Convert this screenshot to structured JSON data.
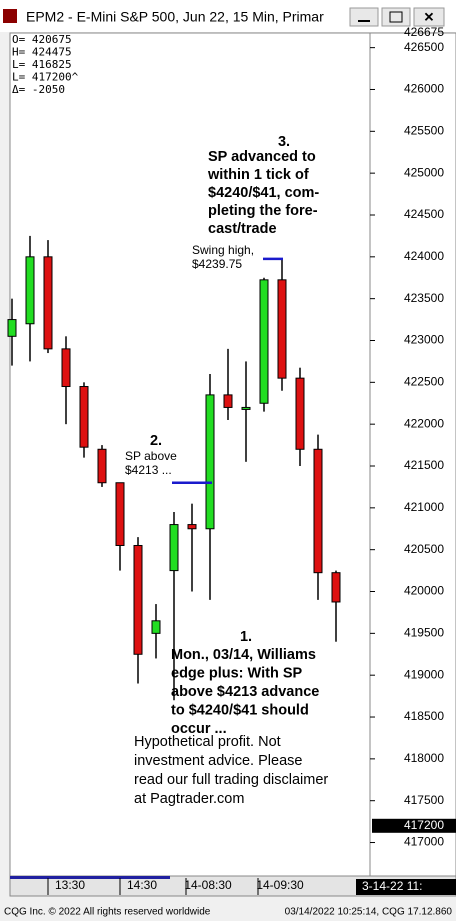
{
  "chart_data": {
    "type": "candlestick",
    "title": "EPM2 - E-Mini S&P 500, Jun 22, 15 Min, Primar",
    "info": [
      "O=  420675",
      "H=  424475",
      "L=  416825",
      "L=  417200^",
      "Δ=    -2050"
    ],
    "ylim": [
      416600,
      426675
    ],
    "yticks": [
      417000,
      417500,
      418000,
      418500,
      419000,
      419500,
      420000,
      420500,
      421000,
      421500,
      422000,
      422500,
      423000,
      423500,
      424000,
      424500,
      425000,
      425500,
      426000,
      426500
    ],
    "last": 417200,
    "up_color": "#22dd22",
    "down_color": "#dd1111",
    "level_color": "#1a1acc",
    "candles": [
      {
        "open": 423050,
        "high": 423500,
        "low": 422700,
        "close": 423250
      },
      {
        "open": 423200,
        "high": 424250,
        "low": 422750,
        "close": 424000
      },
      {
        "open": 424000,
        "high": 424200,
        "low": 422850,
        "close": 422900
      },
      {
        "open": 422900,
        "high": 423050,
        "low": 422000,
        "close": 422450
      },
      {
        "open": 422450,
        "high": 422500,
        "low": 421600,
        "close": 421725
      },
      {
        "open": 421700,
        "high": 421750,
        "low": 421250,
        "close": 421300
      },
      {
        "open": 421300,
        "high": 421300,
        "low": 420250,
        "close": 420550
      },
      {
        "open": 420550,
        "high": 420650,
        "low": 418900,
        "close": 419250
      },
      {
        "open": 419500,
        "high": 419850,
        "low": 419200,
        "close": 419650
      },
      {
        "open": 420250,
        "high": 420950,
        "low": 418700,
        "close": 420800
      },
      {
        "open": 420800,
        "high": 421050,
        "low": 420000,
        "close": 420750
      },
      {
        "open": 420750,
        "high": 422600,
        "low": 419900,
        "close": 422350
      },
      {
        "open": 422350,
        "high": 422900,
        "low": 422050,
        "close": 422200
      },
      {
        "open": 422200,
        "high": 422750,
        "low": 421550,
        "close": 422200
      },
      {
        "open": 422250,
        "high": 423750,
        "low": 422150,
        "close": 423725
      },
      {
        "open": 423725,
        "high": 423975,
        "low": 422400,
        "close": 422550
      },
      {
        "open": 422550,
        "high": 422675,
        "low": 421500,
        "close": 421700
      },
      {
        "open": 421700,
        "high": 421875,
        "low": 419900,
        "close": 420225
      },
      {
        "open": 420225,
        "high": 420250,
        "low": 419400,
        "close": 419875
      }
    ],
    "levels": [
      421300,
      423975
    ],
    "x_labels": [
      "13:30",
      "14:30",
      "14-08:30",
      "14-09:30"
    ],
    "date_label": "3-14-22  11:",
    "note3": {
      "number": "3.",
      "lines": [
        "SP advanced to",
        "within 1 tick of",
        "$4240/$41, com-",
        "pleting the fore-",
        "cast/trade"
      ]
    },
    "swing": [
      "Swing high,",
      "$4239.75"
    ],
    "note2": {
      "number": "2.",
      "lines": [
        "SP above",
        "$4213 ..."
      ]
    },
    "note1": {
      "number": "1.",
      "lines": [
        "Mon., 03/14, Williams",
        "edge plus: With SP",
        "above $4213 advance",
        "to $4240/$41 should",
        "occur ..."
      ]
    },
    "disclaimer": [
      "Hypothetical profit. Not",
      "investment advice. Please",
      "read our full trading disclaimer",
      "at Pagtrader.com"
    ],
    "footer_left": "CQG Inc. © 2022 All rights reserved worldwide",
    "footer_right": "03/14/2022 10:25:14, CQG 17.12.860"
  }
}
